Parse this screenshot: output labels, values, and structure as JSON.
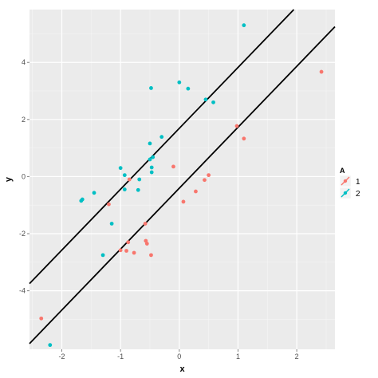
{
  "chart_data": {
    "type": "scatter",
    "title": "",
    "xlabel": "x",
    "ylabel": "y",
    "xlim": [
      -2.55,
      2.65
    ],
    "ylim": [
      -6.05,
      5.85
    ],
    "x_ticks": [
      -2,
      -1,
      0,
      1,
      2
    ],
    "y_ticks": [
      -4,
      -2,
      0,
      2,
      4
    ],
    "grid": true,
    "background": "#ebebeb",
    "legend": {
      "title": "A",
      "placement": "right",
      "entries": [
        {
          "label": "1",
          "color": "#f8766d"
        },
        {
          "label": "2",
          "color": "#00bfc4"
        }
      ]
    },
    "series": [
      {
        "name": "1",
        "color": "#f8766d",
        "points": [
          [
            -2.35,
            -4.97
          ],
          [
            -1.2,
            -0.97
          ],
          [
            -1.0,
            -2.58
          ],
          [
            -0.9,
            -2.6
          ],
          [
            -0.87,
            -2.3
          ],
          [
            -0.85,
            -0.1
          ],
          [
            -0.77,
            -2.67
          ],
          [
            -0.58,
            -1.65
          ],
          [
            -0.57,
            -2.25
          ],
          [
            -0.55,
            -2.35
          ],
          [
            -0.48,
            -2.75
          ],
          [
            -0.1,
            0.35
          ],
          [
            0.07,
            -0.88
          ],
          [
            0.28,
            -0.52
          ],
          [
            0.43,
            -0.12
          ],
          [
            0.5,
            0.05
          ],
          [
            0.98,
            1.77
          ],
          [
            1.1,
            1.33
          ],
          [
            2.42,
            3.67
          ]
        ]
      },
      {
        "name": "2",
        "color": "#00bfc4",
        "points": [
          [
            -2.2,
            -5.9
          ],
          [
            -1.65,
            -0.8
          ],
          [
            -1.67,
            -0.85
          ],
          [
            -1.45,
            -0.57
          ],
          [
            -1.3,
            -2.75
          ],
          [
            -1.15,
            -1.65
          ],
          [
            -1.0,
            0.3
          ],
          [
            -0.93,
            -0.45
          ],
          [
            -0.93,
            0.05
          ],
          [
            -0.7,
            -0.47
          ],
          [
            -0.68,
            -0.1
          ],
          [
            -0.5,
            0.6
          ],
          [
            -0.5,
            1.16
          ],
          [
            -0.48,
            3.1
          ],
          [
            -0.47,
            0.32
          ],
          [
            -0.47,
            0.15
          ],
          [
            -0.45,
            0.68
          ],
          [
            -0.3,
            1.39
          ],
          [
            0.0,
            3.3
          ],
          [
            0.15,
            3.08
          ],
          [
            0.45,
            2.7
          ],
          [
            0.58,
            2.6
          ],
          [
            1.1,
            5.3
          ]
        ]
      }
    ],
    "lines": [
      {
        "x": [
          -2.55,
          1.95
        ],
        "y": [
          -3.75,
          5.85
        ],
        "color": "#000000"
      },
      {
        "x": [
          -2.55,
          2.65
        ],
        "y": [
          -5.85,
          5.25
        ],
        "color": "#000000"
      }
    ]
  }
}
